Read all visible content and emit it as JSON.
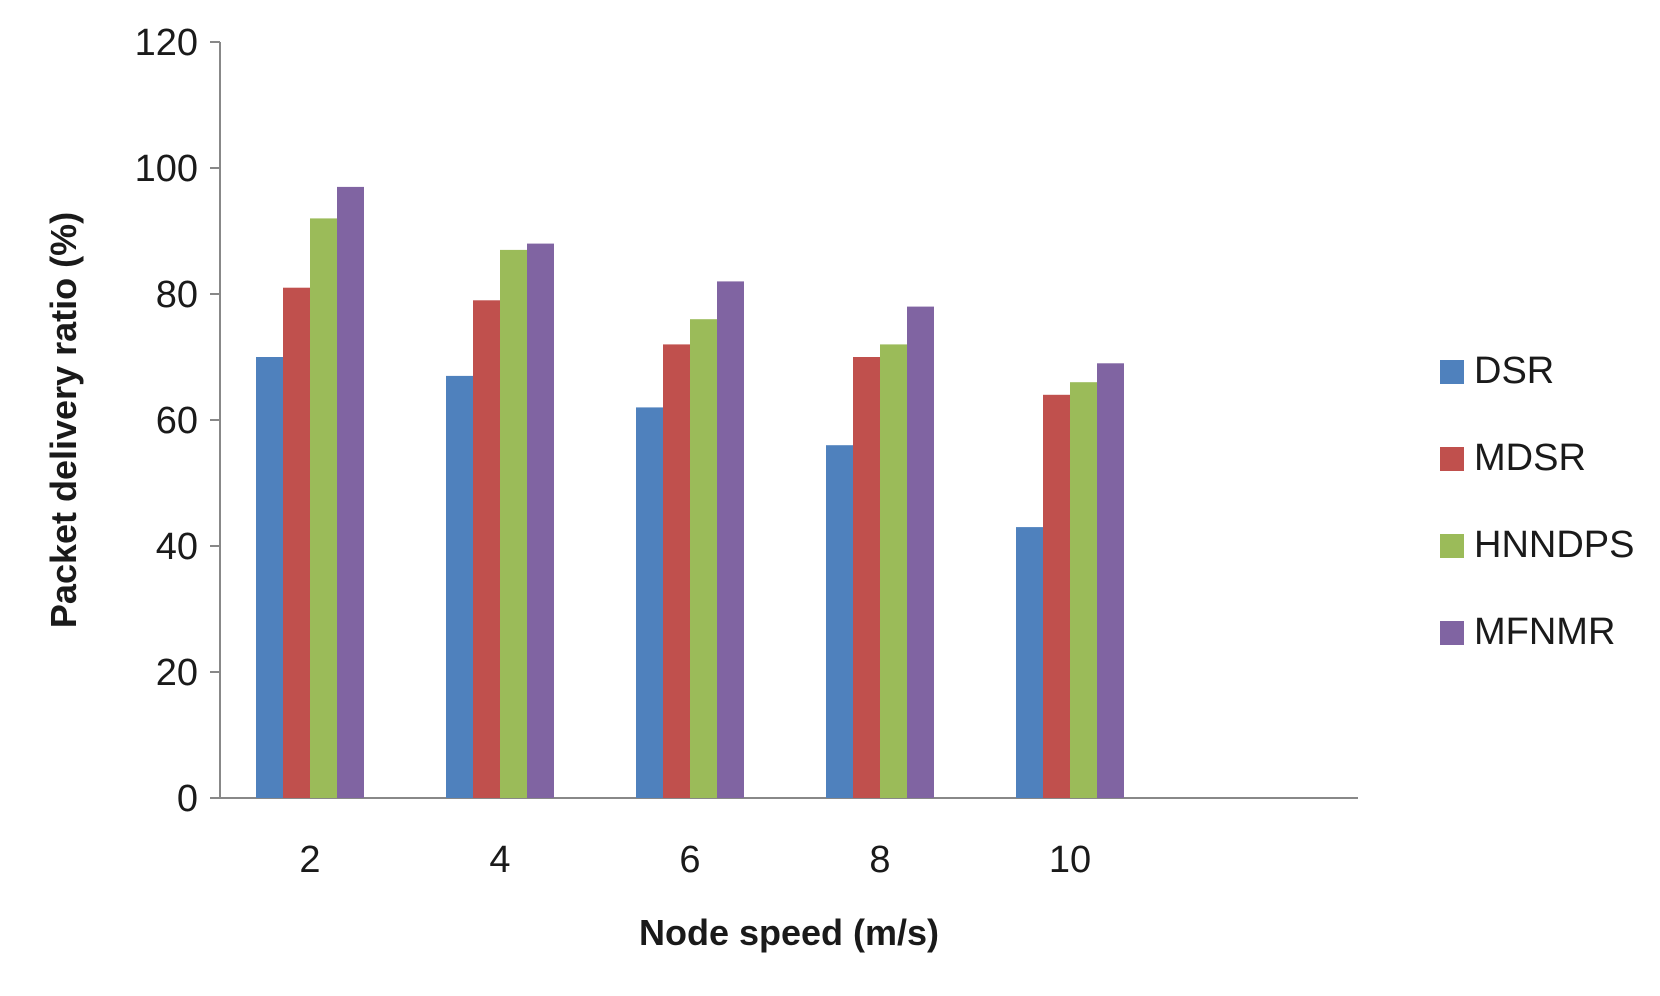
{
  "chart_data": {
    "type": "bar",
    "categories": [
      "2",
      "4",
      "6",
      "8",
      "10"
    ],
    "series": [
      {
        "name": "DSR",
        "color": "#4f81bd",
        "values": [
          70,
          67,
          62,
          56,
          43
        ]
      },
      {
        "name": "MDSR",
        "color": "#c0504d",
        "values": [
          81,
          79,
          72,
          70,
          64
        ]
      },
      {
        "name": "HNNDPS",
        "color": "#9bbb59",
        "values": [
          92,
          87,
          76,
          72,
          66
        ]
      },
      {
        "name": "MFNMR",
        "color": "#8064a2",
        "values": [
          97,
          88,
          82,
          78,
          69
        ]
      }
    ],
    "title": "",
    "xlabel": "Node speed (m/s)",
    "ylabel": "Packet delivery ratio (%)",
    "ylim": [
      0,
      120
    ],
    "yticks": [
      0,
      20,
      40,
      60,
      80,
      100,
      120
    ],
    "grid": false,
    "legend_position": "right"
  }
}
